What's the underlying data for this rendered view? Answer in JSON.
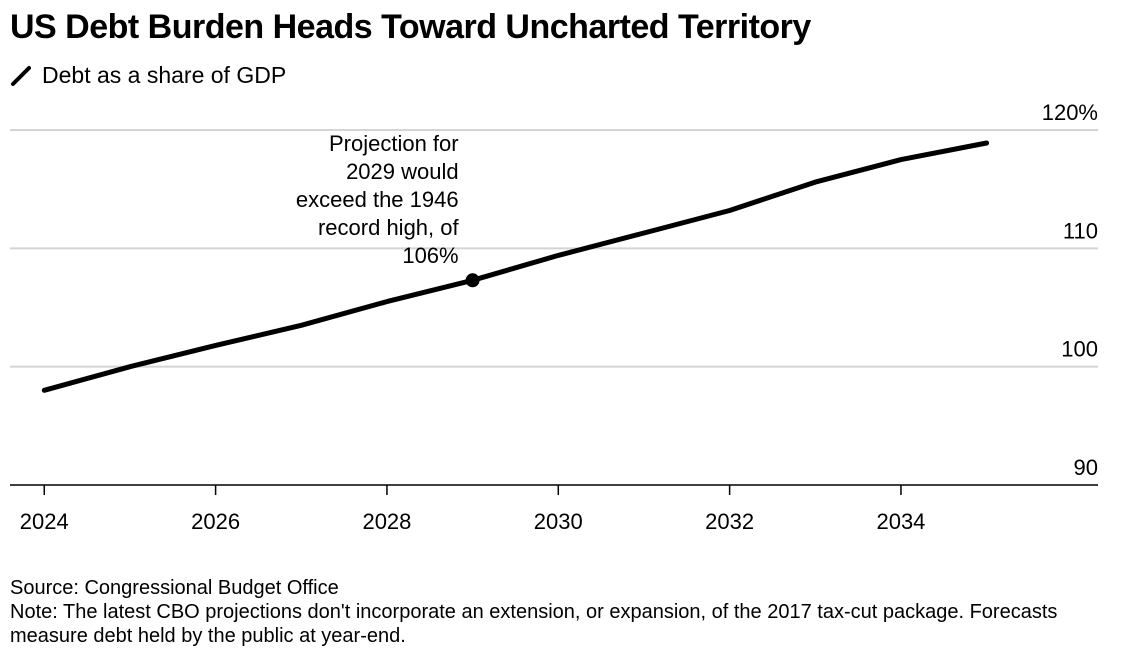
{
  "chart_data": {
    "type": "line",
    "title": "US Debt Burden Heads Toward Uncharted Territory",
    "legend": [
      "Debt as a share of GDP"
    ],
    "series": [
      {
        "name": "Debt as a share of GDP",
        "color": "#000000",
        "x": [
          2024,
          2025,
          2026,
          2027,
          2028,
          2029,
          2030,
          2031,
          2032,
          2033,
          2034,
          2035
        ],
        "values": [
          98.0,
          100.0,
          101.8,
          103.5,
          105.5,
          107.3,
          109.4,
          111.3,
          113.2,
          115.6,
          117.5,
          118.9
        ]
      }
    ],
    "xlim": [
      2023.6,
      2036.3
    ],
    "ylim": [
      90,
      120
    ],
    "x_ticks": [
      2024,
      2026,
      2028,
      2030,
      2032,
      2034
    ],
    "x_tick_labels": [
      "2024",
      "2026",
      "2028",
      "2030",
      "2032",
      "2034"
    ],
    "y_ticks": [
      90,
      100,
      110,
      120
    ],
    "y_tick_labels": [
      "90",
      "100",
      "110",
      "120%"
    ],
    "grid": "horizontal",
    "annotation": {
      "x": 2029,
      "y": 107.3,
      "lines": [
        "Projection for",
        "2029 would",
        "exceed the 1946",
        "record high, of",
        "106%"
      ]
    },
    "source": "Source: Congressional Budget Office",
    "note": "Note: The latest CBO projections don't incorporate an extension, or expansion, of the 2017 tax-cut package. Forecasts measure debt held by the public at year-end."
  }
}
